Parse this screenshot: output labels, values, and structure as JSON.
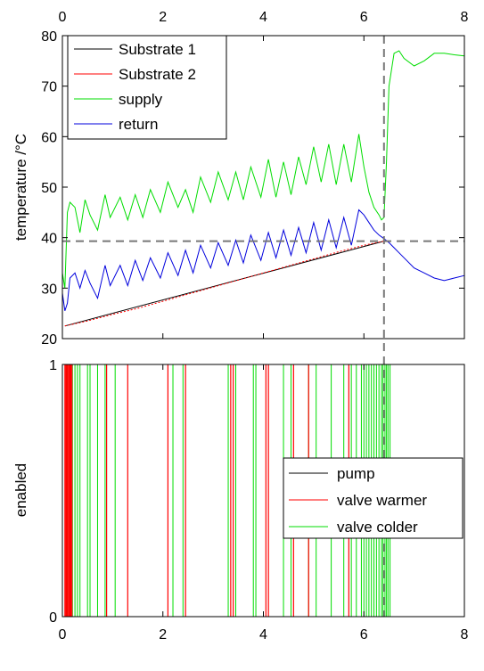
{
  "chart_data": [
    {
      "type": "line",
      "title": "",
      "xlabel": "",
      "ylabel": "temperature /°C",
      "xlim": [
        0,
        8
      ],
      "ylim": [
        20,
        80
      ],
      "x_ticks": [
        "0",
        "2",
        "4",
        "6",
        "8"
      ],
      "y_ticks": [
        "20",
        "30",
        "40",
        "50",
        "60",
        "70",
        "80"
      ],
      "grid": false,
      "legend_position": "top-left",
      "reference_lines": {
        "vertical_x": 6.4,
        "horizontal_y": 39.3
      },
      "series": [
        {
          "name": "Substrate 1",
          "color": "#000000",
          "x": [
            0.05,
            6.4
          ],
          "y": [
            22.5,
            39.3
          ]
        },
        {
          "name": "Substrate 2",
          "color": "#ff0000",
          "x": [
            0.05,
            0.5,
            1.0,
            1.5,
            2.0,
            2.5,
            3.0,
            3.5,
            4.0,
            4.5,
            5.0,
            5.5,
            6.0,
            6.4
          ],
          "y": [
            22.5,
            23.5,
            24.8,
            26.0,
            27.4,
            28.8,
            30.2,
            31.6,
            33.0,
            34.4,
            35.8,
            37.2,
            38.5,
            39.3
          ]
        },
        {
          "name": "supply",
          "color": "#00dd00",
          "x": [
            0.0,
            0.05,
            0.1,
            0.15,
            0.25,
            0.35,
            0.45,
            0.55,
            0.7,
            0.85,
            0.95,
            1.15,
            1.3,
            1.45,
            1.6,
            1.75,
            1.95,
            2.1,
            2.3,
            2.45,
            2.6,
            2.75,
            2.95,
            3.1,
            3.3,
            3.45,
            3.6,
            3.75,
            3.95,
            4.1,
            4.25,
            4.4,
            4.55,
            4.7,
            4.85,
            5.0,
            5.15,
            5.3,
            5.45,
            5.6,
            5.75,
            5.9,
            6.0,
            6.1,
            6.2,
            6.3,
            6.35,
            6.4,
            6.45,
            6.5,
            6.6,
            6.7,
            6.8,
            7.0,
            7.2,
            7.4,
            7.6,
            7.8,
            8.0
          ],
          "y": [
            33.0,
            30.0,
            45.0,
            47.0,
            46.0,
            41.0,
            47.5,
            44.5,
            41.5,
            48.5,
            44.0,
            48.0,
            43.5,
            48.5,
            44.0,
            49.5,
            45.0,
            51.0,
            46.0,
            49.5,
            45.0,
            52.0,
            47.0,
            53.0,
            47.5,
            53.0,
            47.5,
            54.0,
            48.0,
            55.5,
            48.0,
            55.0,
            48.5,
            56.0,
            50.5,
            58.0,
            51.0,
            58.5,
            50.5,
            58.5,
            51.0,
            60.5,
            54.0,
            49.0,
            46.0,
            44.5,
            43.5,
            44.0,
            55.0,
            70.0,
            76.5,
            77.0,
            75.5,
            74.0,
            75.0,
            76.5,
            76.5,
            76.2,
            76.0
          ]
        },
        {
          "name": "return",
          "color": "#0000dd",
          "x": [
            0.0,
            0.05,
            0.1,
            0.15,
            0.25,
            0.35,
            0.45,
            0.55,
            0.7,
            0.85,
            0.95,
            1.15,
            1.3,
            1.45,
            1.6,
            1.75,
            1.95,
            2.1,
            2.3,
            2.45,
            2.6,
            2.75,
            2.95,
            3.1,
            3.3,
            3.45,
            3.6,
            3.75,
            3.95,
            4.1,
            4.25,
            4.4,
            4.55,
            4.7,
            4.85,
            5.0,
            5.15,
            5.3,
            5.45,
            5.6,
            5.75,
            5.9,
            6.0,
            6.1,
            6.2,
            6.3,
            6.4,
            6.5,
            6.6,
            6.7,
            6.8,
            7.0,
            7.2,
            7.4,
            7.6,
            7.8,
            8.0
          ],
          "y": [
            29.0,
            25.5,
            27.0,
            32.0,
            33.0,
            30.0,
            33.5,
            31.0,
            28.0,
            34.5,
            30.5,
            34.5,
            30.5,
            35.5,
            31.5,
            36.0,
            32.0,
            37.0,
            32.5,
            37.5,
            33.0,
            38.5,
            34.0,
            39.0,
            34.5,
            39.5,
            35.0,
            40.5,
            35.5,
            41.0,
            36.0,
            41.5,
            36.5,
            42.0,
            37.0,
            43.0,
            37.5,
            43.5,
            38.0,
            44.0,
            38.5,
            45.5,
            44.5,
            43.0,
            41.5,
            40.5,
            39.8,
            39.0,
            38.0,
            37.0,
            36.0,
            34.0,
            33.0,
            32.0,
            31.5,
            32.0,
            32.5
          ]
        }
      ]
    },
    {
      "type": "line",
      "title": "",
      "xlabel": "",
      "ylabel": "enabled",
      "xlim": [
        0,
        8
      ],
      "ylim": [
        0,
        1
      ],
      "x_ticks": [
        "0",
        "2",
        "4",
        "6",
        "8"
      ],
      "y_ticks": [
        "0",
        "1"
      ],
      "grid": false,
      "legend_position": "bottom-right",
      "reference_lines": {
        "vertical_x": 6.4
      },
      "series": [
        {
          "name": "pump",
          "color": "#000000",
          "x": [
            0.0,
            6.4
          ],
          "y": [
            1,
            1
          ]
        },
        {
          "name": "valve warmer",
          "color": "#ff0000",
          "switch_times": [
            0.05,
            0.07,
            0.09,
            0.11,
            0.13,
            0.15,
            0.17,
            0.19,
            0.88,
            1.3,
            2.1,
            2.45,
            3.35,
            3.4,
            4.05,
            4.1,
            4.6,
            4.9,
            5.7
          ]
        },
        {
          "name": "valve colder",
          "color": "#00dd00",
          "switch_times": [
            0.0,
            0.1,
            0.2,
            0.25,
            0.3,
            0.35,
            0.5,
            0.55,
            0.7,
            0.85,
            1.05,
            2.2,
            2.4,
            3.3,
            3.45,
            3.8,
            3.85,
            4.4,
            4.55,
            4.9,
            5.05,
            5.35,
            5.6,
            5.75,
            5.85,
            5.95,
            6.0,
            6.05,
            6.1,
            6.15,
            6.2,
            6.25,
            6.3,
            6.35,
            6.38,
            6.42,
            6.45,
            6.48,
            6.52
          ]
        }
      ]
    }
  ],
  "legends": {
    "top": [
      "Substrate 1",
      "Substrate 2",
      "supply",
      "return"
    ],
    "bottom": [
      "pump",
      "valve warmer",
      "valve colder"
    ]
  }
}
